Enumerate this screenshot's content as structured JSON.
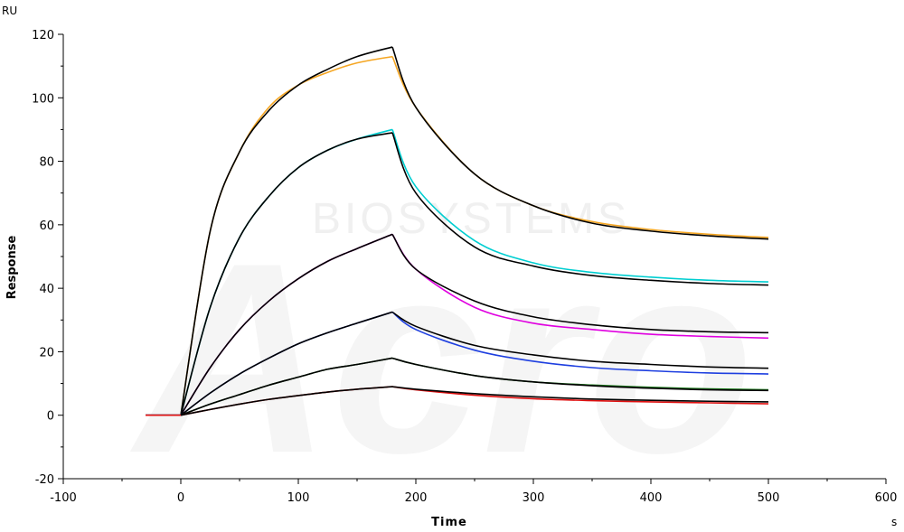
{
  "chart_data": {
    "type": "line",
    "ylabel": "Response",
    "xlabel": "Time",
    "y_unit": "RU",
    "x_unit": "s",
    "xlim": [
      -100,
      600
    ],
    "ylim": [
      -20,
      120
    ],
    "x_ticks": [
      -100,
      0,
      100,
      200,
      300,
      400,
      500,
      600
    ],
    "y_ticks": [
      -20,
      0,
      20,
      40,
      60,
      80,
      100,
      120
    ],
    "grid": false,
    "watermark": [
      "Acro",
      "BIOSYSTEMS"
    ],
    "legend": "none",
    "baseline": {
      "x_start": -30,
      "x_end": 0,
      "y": 0
    },
    "association_end": 180,
    "dissociation_end": 500,
    "series": [
      {
        "color": "#F5A623",
        "x": [
          -30,
          0,
          25,
          50,
          75,
          100,
          125,
          150,
          180,
          200,
          250,
          300,
          350,
          400,
          450,
          500
        ],
        "y": [
          0,
          0,
          58,
          83,
          97,
          104,
          108,
          111,
          113,
          97,
          76,
          66,
          61,
          58.5,
          57,
          56
        ]
      },
      {
        "color": "#000000",
        "x": [
          0,
          25,
          50,
          75,
          100,
          125,
          150,
          180,
          200,
          250,
          300,
          350,
          400,
          450,
          500
        ],
        "y": [
          0,
          58,
          83,
          96,
          104,
          109,
          113,
          116,
          97,
          76,
          66,
          60.5,
          58,
          56.5,
          55.5
        ]
      },
      {
        "color": "#00CED1",
        "x": [
          -30,
          0,
          25,
          50,
          75,
          100,
          125,
          150,
          180,
          200,
          250,
          300,
          350,
          400,
          450,
          500
        ],
        "y": [
          0,
          0,
          34,
          56,
          69,
          78,
          83.5,
          87,
          90,
          72,
          55,
          48,
          45,
          43.5,
          42.5,
          42
        ]
      },
      {
        "color": "#000000",
        "x": [
          0,
          25,
          50,
          75,
          100,
          125,
          150,
          180,
          200,
          250,
          300,
          350,
          400,
          450,
          500
        ],
        "y": [
          0,
          34,
          56,
          69,
          78,
          83.5,
          87,
          89,
          70,
          53,
          47,
          44,
          42.5,
          41.5,
          41
        ]
      },
      {
        "color": "#E000E0",
        "x": [
          -30,
          0,
          25,
          50,
          75,
          100,
          125,
          150,
          180,
          200,
          250,
          300,
          350,
          400,
          450,
          500
        ],
        "y": [
          0,
          0,
          15,
          27,
          36,
          43,
          48.5,
          52.5,
          57,
          46,
          34,
          29,
          27,
          25.5,
          24.8,
          24.3
        ]
      },
      {
        "color": "#000000",
        "x": [
          0,
          25,
          50,
          75,
          100,
          125,
          150,
          180,
          200,
          250,
          300,
          350,
          400,
          450,
          500
        ],
        "y": [
          0,
          15,
          27,
          36,
          43,
          48.5,
          52.5,
          57,
          46,
          36,
          31,
          28.5,
          27,
          26.3,
          26
        ]
      },
      {
        "color": "#1E3FE0",
        "x": [
          -30,
          0,
          25,
          50,
          75,
          100,
          125,
          150,
          180,
          200,
          250,
          300,
          350,
          400,
          450,
          500
        ],
        "y": [
          0,
          0,
          7,
          13,
          18,
          22.5,
          26,
          29,
          32.5,
          27,
          20.5,
          17,
          15,
          14,
          13.3,
          13
        ]
      },
      {
        "color": "#000000",
        "x": [
          0,
          25,
          50,
          75,
          100,
          125,
          150,
          180,
          200,
          250,
          300,
          350,
          400,
          450,
          500
        ],
        "y": [
          0,
          7,
          13,
          18,
          22.5,
          26,
          29,
          32.5,
          28,
          22,
          19,
          17,
          16,
          15.2,
          14.8
        ]
      },
      {
        "color": "#1A7A1A",
        "x": [
          -30,
          0,
          25,
          50,
          75,
          100,
          125,
          150,
          180,
          200,
          250,
          300,
          350,
          400,
          450,
          500
        ],
        "y": [
          0,
          0,
          3.5,
          6.5,
          9.5,
          12,
          14.5,
          16,
          18,
          16,
          12.5,
          10.5,
          9.5,
          8.8,
          8.3,
          8
        ]
      },
      {
        "color": "#000000",
        "x": [
          0,
          25,
          50,
          75,
          100,
          125,
          150,
          180,
          200,
          250,
          300,
          350,
          400,
          450,
          500
        ],
        "y": [
          0,
          3.5,
          6.5,
          9.5,
          12,
          14.5,
          16,
          18,
          16,
          12.5,
          10.5,
          9.3,
          8.5,
          8,
          7.8
        ]
      },
      {
        "color": "#E01010",
        "x": [
          -30,
          0,
          25,
          50,
          75,
          100,
          125,
          150,
          180,
          200,
          250,
          300,
          350,
          400,
          450,
          500
        ],
        "y": [
          0,
          0,
          1.8,
          3.5,
          5,
          6.2,
          7.3,
          8.2,
          9,
          8,
          6.3,
          5.2,
          4.6,
          4.2,
          3.9,
          3.6
        ]
      },
      {
        "color": "#000000",
        "x": [
          0,
          25,
          50,
          75,
          100,
          125,
          150,
          180,
          200,
          250,
          300,
          350,
          400,
          450,
          500
        ],
        "y": [
          0,
          1.8,
          3.5,
          5,
          6.2,
          7.3,
          8.2,
          9,
          8.2,
          6.8,
          5.8,
          5.1,
          4.7,
          4.4,
          4.2
        ]
      }
    ]
  }
}
